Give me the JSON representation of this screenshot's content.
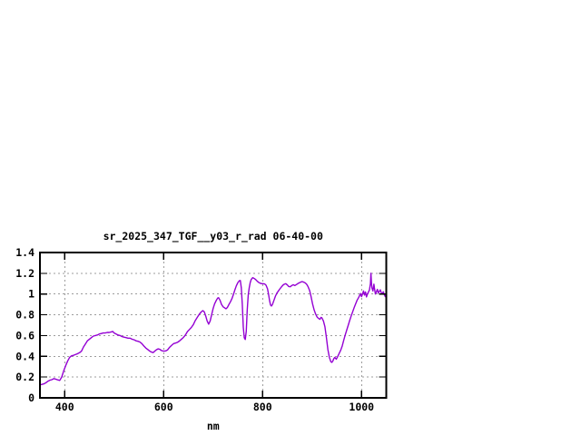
{
  "page": {
    "background": "#ffffff"
  },
  "colors": {
    "line": "#9400D3",
    "grid": "#9c9c9c",
    "axis": "#000000",
    "text": "#000000",
    "background": "#ffffff"
  },
  "chart_data": {
    "type": "line",
    "title": "sr_2025_347_TGF__y03_r_rad 06-40-00",
    "xlabel": "nm",
    "ylabel": "",
    "xlim": [
      350,
      1050
    ],
    "ylim": [
      0,
      1.4
    ],
    "x_tick_values": [
      400,
      600,
      800,
      1000
    ],
    "x_tick_labels": [
      "400",
      "600",
      "800",
      "1000"
    ],
    "y_tick_values": [
      0,
      0.2,
      0.4,
      0.6,
      0.8,
      1.0,
      1.2,
      1.4
    ],
    "y_tick_labels": [
      "0",
      "0.2",
      "0.4",
      "0.6",
      "0.8",
      "1",
      "1.2",
      "1.4"
    ],
    "grid": true,
    "grid_style": "dashed",
    "legend": "none",
    "series": [
      {
        "name": "sr_2025_347_TGF__y03_r_rad 06-40-00",
        "color": "#9400D3",
        "points": [
          [
            350,
            0.125
          ],
          [
            354,
            0.13
          ],
          [
            358,
            0.135
          ],
          [
            362,
            0.145
          ],
          [
            366,
            0.16
          ],
          [
            370,
            0.17
          ],
          [
            374,
            0.175
          ],
          [
            378,
            0.185
          ],
          [
            382,
            0.18
          ],
          [
            386,
            0.173
          ],
          [
            390,
            0.168
          ],
          [
            394,
            0.2
          ],
          [
            398,
            0.26
          ],
          [
            402,
            0.31
          ],
          [
            406,
            0.355
          ],
          [
            410,
            0.39
          ],
          [
            414,
            0.405
          ],
          [
            418,
            0.41
          ],
          [
            422,
            0.418
          ],
          [
            426,
            0.425
          ],
          [
            430,
            0.435
          ],
          [
            434,
            0.45
          ],
          [
            438,
            0.49
          ],
          [
            442,
            0.52
          ],
          [
            446,
            0.55
          ],
          [
            450,
            0.565
          ],
          [
            454,
            0.58
          ],
          [
            458,
            0.595
          ],
          [
            462,
            0.6
          ],
          [
            466,
            0.605
          ],
          [
            470,
            0.615
          ],
          [
            474,
            0.62
          ],
          [
            478,
            0.625
          ],
          [
            482,
            0.625
          ],
          [
            486,
            0.63
          ],
          [
            490,
            0.63
          ],
          [
            494,
            0.635
          ],
          [
            497,
            0.64
          ],
          [
            500,
            0.625
          ],
          [
            504,
            0.615
          ],
          [
            508,
            0.605
          ],
          [
            512,
            0.6
          ],
          [
            516,
            0.59
          ],
          [
            520,
            0.585
          ],
          [
            524,
            0.58
          ],
          [
            528,
            0.575
          ],
          [
            532,
            0.575
          ],
          [
            536,
            0.565
          ],
          [
            540,
            0.56
          ],
          [
            544,
            0.55
          ],
          [
            548,
            0.545
          ],
          [
            552,
            0.538
          ],
          [
            556,
            0.522
          ],
          [
            560,
            0.5
          ],
          [
            564,
            0.48
          ],
          [
            568,
            0.465
          ],
          [
            572,
            0.45
          ],
          [
            576,
            0.44
          ],
          [
            579,
            0.436
          ],
          [
            582,
            0.45
          ],
          [
            586,
            0.465
          ],
          [
            589,
            0.472
          ],
          [
            592,
            0.468
          ],
          [
            596,
            0.455
          ],
          [
            600,
            0.45
          ],
          [
            604,
            0.452
          ],
          [
            608,
            0.462
          ],
          [
            612,
            0.487
          ],
          [
            616,
            0.505
          ],
          [
            620,
            0.522
          ],
          [
            624,
            0.528
          ],
          [
            628,
            0.535
          ],
          [
            632,
            0.548
          ],
          [
            636,
            0.565
          ],
          [
            640,
            0.582
          ],
          [
            644,
            0.605
          ],
          [
            648,
            0.638
          ],
          [
            652,
            0.658
          ],
          [
            656,
            0.678
          ],
          [
            660,
            0.705
          ],
          [
            664,
            0.745
          ],
          [
            668,
            0.775
          ],
          [
            672,
            0.805
          ],
          [
            676,
            0.828
          ],
          [
            679,
            0.84
          ],
          [
            682,
            0.83
          ],
          [
            685,
            0.79
          ],
          [
            688,
            0.74
          ],
          [
            691,
            0.71
          ],
          [
            694,
            0.74
          ],
          [
            697,
            0.8
          ],
          [
            700,
            0.86
          ],
          [
            703,
            0.905
          ],
          [
            706,
            0.935
          ],
          [
            709,
            0.96
          ],
          [
            711,
            0.965
          ],
          [
            714,
            0.94
          ],
          [
            717,
            0.9
          ],
          [
            720,
            0.878
          ],
          [
            723,
            0.868
          ],
          [
            726,
            0.858
          ],
          [
            729,
            0.872
          ],
          [
            732,
            0.9
          ],
          [
            735,
            0.925
          ],
          [
            738,
            0.955
          ],
          [
            741,
            0.995
          ],
          [
            744,
            1.04
          ],
          [
            747,
            1.08
          ],
          [
            750,
            1.11
          ],
          [
            753,
            1.128
          ],
          [
            755,
            1.13
          ],
          [
            757,
            1.06
          ],
          [
            759,
            0.9
          ],
          [
            761,
            0.68
          ],
          [
            763,
            0.578
          ],
          [
            765,
            0.562
          ],
          [
            767,
            0.64
          ],
          [
            769,
            0.85
          ],
          [
            771,
            0.99
          ],
          [
            773,
            1.06
          ],
          [
            775,
            1.11
          ],
          [
            777,
            1.14
          ],
          [
            780,
            1.158
          ],
          [
            783,
            1.15
          ],
          [
            786,
            1.14
          ],
          [
            789,
            1.125
          ],
          [
            792,
            1.112
          ],
          [
            795,
            1.105
          ],
          [
            798,
            1.1
          ],
          [
            801,
            1.1
          ],
          [
            804,
            1.098
          ],
          [
            807,
            1.085
          ],
          [
            810,
            1.05
          ],
          [
            812,
            1.0
          ],
          [
            814,
            0.94
          ],
          [
            816,
            0.895
          ],
          [
            818,
            0.885
          ],
          [
            820,
            0.9
          ],
          [
            823,
            0.94
          ],
          [
            826,
            0.98
          ],
          [
            829,
            1.01
          ],
          [
            832,
            1.03
          ],
          [
            835,
            1.05
          ],
          [
            838,
            1.068
          ],
          [
            841,
            1.085
          ],
          [
            844,
            1.095
          ],
          [
            847,
            1.1
          ],
          [
            850,
            1.088
          ],
          [
            853,
            1.072
          ],
          [
            856,
            1.07
          ],
          [
            859,
            1.082
          ],
          [
            862,
            1.09
          ],
          [
            865,
            1.082
          ],
          [
            868,
            1.09
          ],
          [
            871,
            1.1
          ],
          [
            874,
            1.108
          ],
          [
            877,
            1.115
          ],
          [
            880,
            1.12
          ],
          [
            883,
            1.115
          ],
          [
            886,
            1.108
          ],
          [
            889,
            1.095
          ],
          [
            892,
            1.07
          ],
          [
            895,
            1.035
          ],
          [
            898,
            0.975
          ],
          [
            901,
            0.905
          ],
          [
            904,
            0.85
          ],
          [
            907,
            0.81
          ],
          [
            910,
            0.78
          ],
          [
            913,
            0.765
          ],
          [
            916,
            0.757
          ],
          [
            918,
            0.775
          ],
          [
            920,
            0.77
          ],
          [
            923,
            0.74
          ],
          [
            926,
            0.685
          ],
          [
            929,
            0.58
          ],
          [
            932,
            0.465
          ],
          [
            935,
            0.39
          ],
          [
            938,
            0.348
          ],
          [
            940,
            0.342
          ],
          [
            942,
            0.355
          ],
          [
            944,
            0.378
          ],
          [
            946,
            0.39
          ],
          [
            949,
            0.372
          ],
          [
            952,
            0.4
          ],
          [
            955,
            0.43
          ],
          [
            958,
            0.46
          ],
          [
            961,
            0.5
          ],
          [
            964,
            0.555
          ],
          [
            967,
            0.605
          ],
          [
            970,
            0.652
          ],
          [
            973,
            0.698
          ],
          [
            976,
            0.745
          ],
          [
            979,
            0.788
          ],
          [
            982,
            0.828
          ],
          [
            985,
            0.868
          ],
          [
            988,
            0.905
          ],
          [
            991,
            0.94
          ],
          [
            994,
            0.965
          ],
          [
            996,
            0.985
          ],
          [
            998,
            1.005
          ],
          [
            1000,
            0.975
          ],
          [
            1002,
            1.0
          ],
          [
            1004,
            1.03
          ],
          [
            1006,
            0.99
          ],
          [
            1008,
            1.02
          ],
          [
            1010,
            0.972
          ],
          [
            1012,
            1.0
          ],
          [
            1014,
            1.02
          ],
          [
            1016,
            1.04
          ],
          [
            1018,
            1.1
          ],
          [
            1019,
            1.2
          ],
          [
            1020,
            1.11
          ],
          [
            1021,
            1.06
          ],
          [
            1023,
            1.03
          ],
          [
            1025,
            1.095
          ],
          [
            1026,
            1.06
          ],
          [
            1028,
            1.0
          ],
          [
            1030,
            1.02
          ],
          [
            1032,
            1.045
          ],
          [
            1034,
            1.01
          ],
          [
            1036,
            1.025
          ],
          [
            1038,
            1.04
          ],
          [
            1040,
            1.012
          ],
          [
            1042,
            1.002
          ],
          [
            1044,
            1.022
          ],
          [
            1046,
            0.995
          ],
          [
            1048,
            0.975
          ]
        ]
      }
    ]
  }
}
